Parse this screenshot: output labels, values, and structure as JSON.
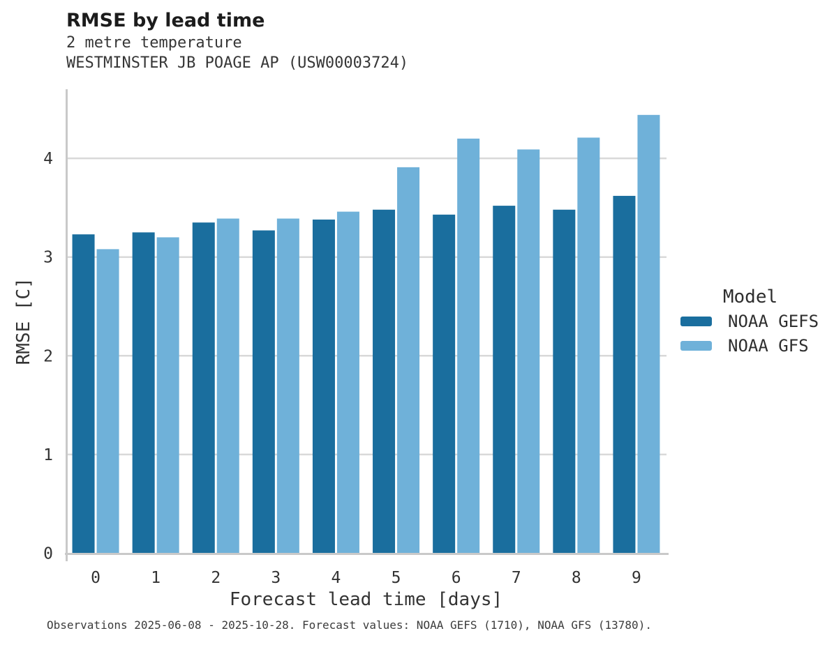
{
  "header": {
    "title": "RMSE by lead time",
    "subtitle_line1": "2 metre temperature",
    "subtitle_line2": "WESTMINSTER JB POAGE AP (USW00003724)"
  },
  "legend": {
    "title": "Model",
    "items": [
      {
        "label": "NOAA GEFS",
        "color": "#1a6e9e"
      },
      {
        "label": "NOAA GFS",
        "color": "#6fb1d9"
      }
    ]
  },
  "caption": "Observations 2025-06-08 - 2025-10-28. Forecast values: NOAA GEFS (1710), NOAA GFS (13780).",
  "chart_data": {
    "type": "bar",
    "title": "RMSE by lead time",
    "subtitle": [
      "2 metre temperature",
      "WESTMINSTER JB POAGE AP (USW00003724)"
    ],
    "xlabel": "Forecast lead time [days]",
    "ylabel": "RMSE [C]",
    "categories": [
      "0",
      "1",
      "2",
      "3",
      "4",
      "5",
      "6",
      "7",
      "8",
      "9"
    ],
    "series": [
      {
        "name": "NOAA GEFS",
        "color": "#1a6e9e",
        "values": [
          3.23,
          3.25,
          3.35,
          3.27,
          3.38,
          3.48,
          3.43,
          3.52,
          3.48,
          3.62
        ]
      },
      {
        "name": "NOAA GFS",
        "color": "#6fb1d9",
        "values": [
          3.08,
          3.2,
          3.39,
          3.39,
          3.46,
          3.91,
          4.2,
          4.09,
          4.21,
          4.44
        ]
      }
    ],
    "ylim": [
      0,
      4.7
    ],
    "yticks": [
      0,
      1,
      2,
      3,
      4
    ],
    "grid": "horizontal-gridlines",
    "legend_position": "right",
    "legend_title": "Model",
    "grid_color": "#d9d9d9",
    "axis_color": "#c9c9c9",
    "text_color": "#333333"
  }
}
